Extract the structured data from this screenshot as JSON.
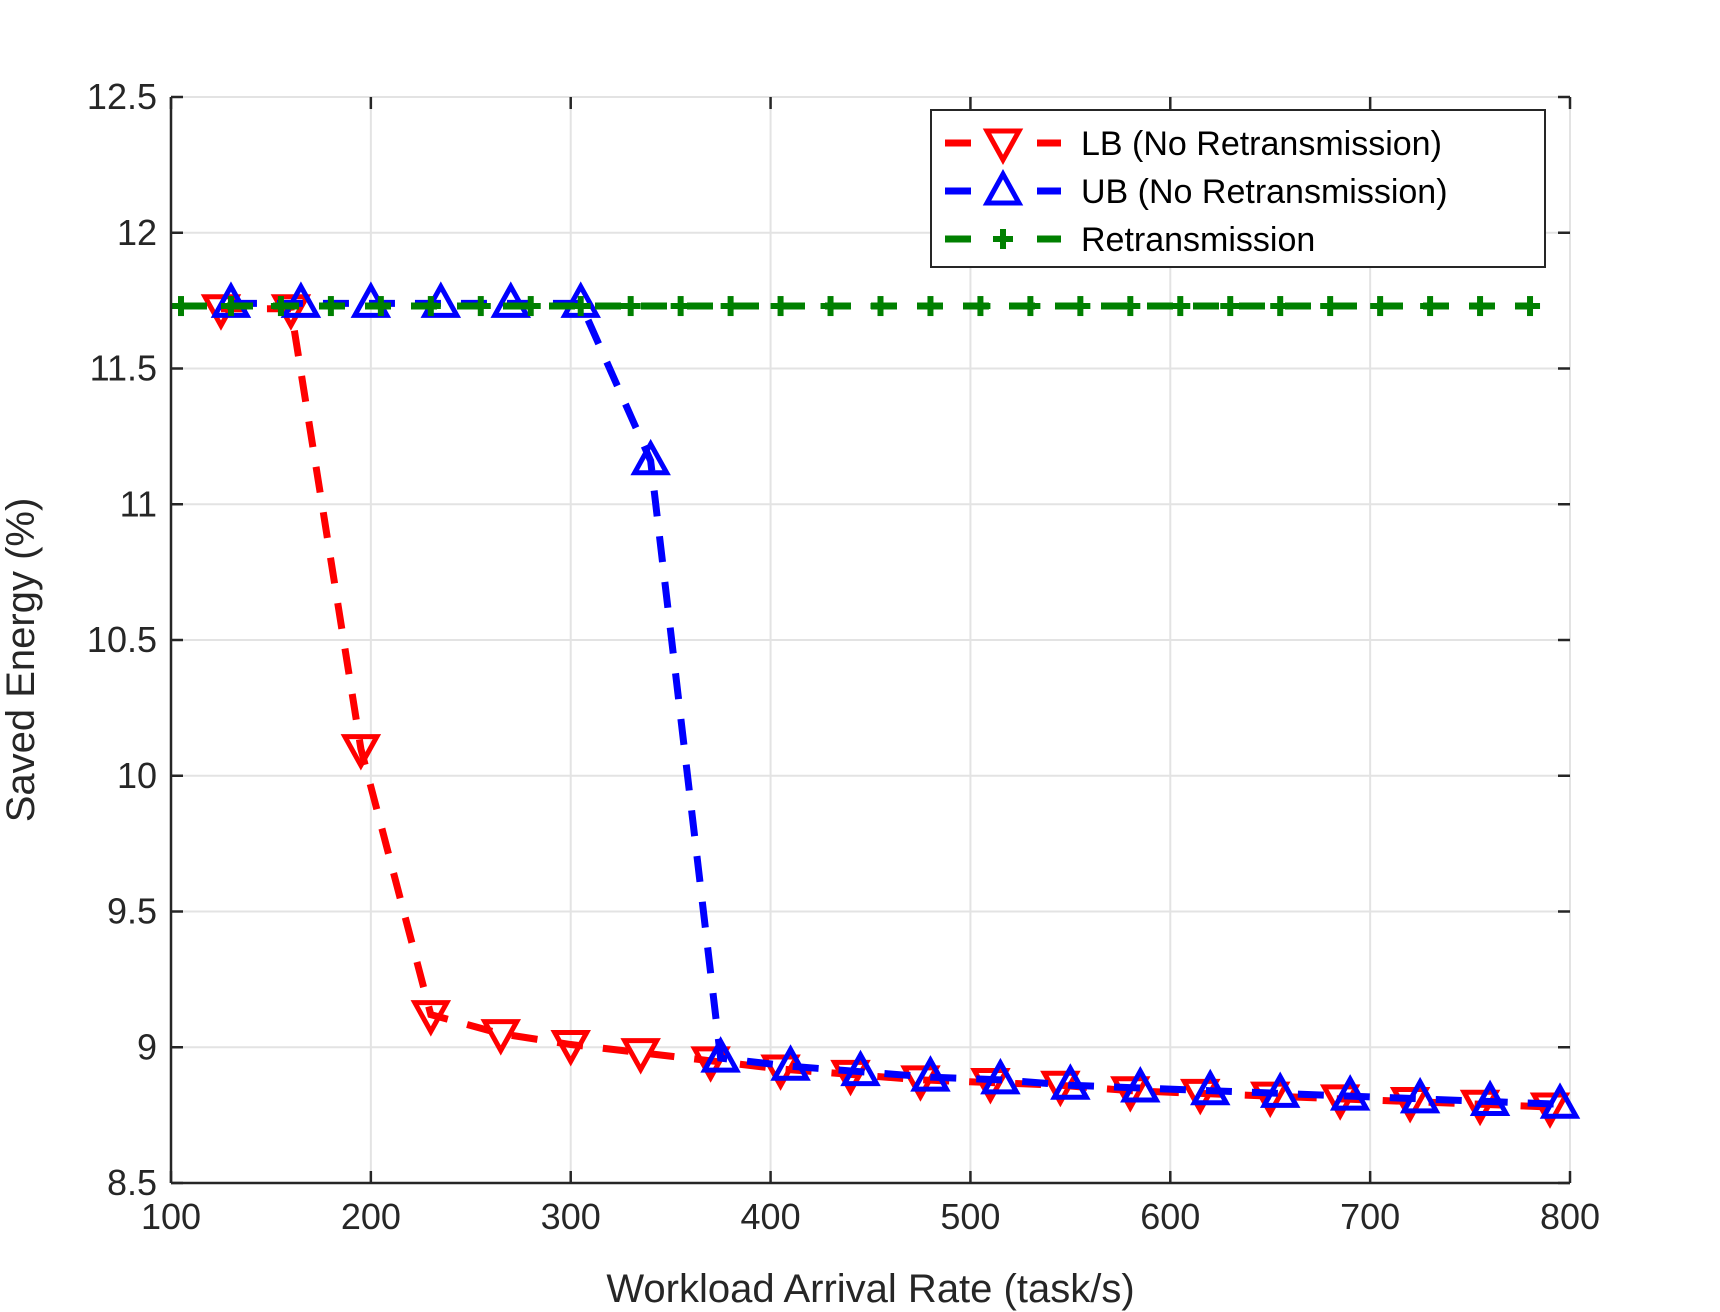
{
  "chart_data": {
    "type": "line",
    "xlabel": "Workload Arrival Rate (task/s)",
    "ylabel": "Saved Energy (%)",
    "xlim": [
      100,
      800
    ],
    "ylim": [
      8.5,
      12.5
    ],
    "xticks": [
      100,
      200,
      300,
      400,
      500,
      600,
      700,
      800
    ],
    "yticks": [
      8.5,
      9,
      9.5,
      10,
      10.5,
      11,
      11.5,
      12,
      12.5
    ],
    "xtick_labels": [
      "100",
      "200",
      "300",
      "400",
      "500",
      "600",
      "700",
      "800"
    ],
    "ytick_labels": [
      "8.5",
      "9",
      "9.5",
      "10",
      "10.5",
      "11",
      "11.5",
      "12",
      "12.5"
    ],
    "grid": true,
    "legend_position": "top-right",
    "series": [
      {
        "name": "LB (No Retransmission)",
        "color": "#ff0000",
        "marker": "triangle-down",
        "line_style": "dashed",
        "x": [
          125,
          160,
          195,
          230,
          265,
          300,
          335,
          370,
          405,
          440,
          475,
          510,
          545,
          580,
          615,
          650,
          685,
          720,
          755,
          790
        ],
        "y": [
          11.72,
          11.72,
          10.1,
          9.12,
          9.05,
          9.01,
          8.98,
          8.95,
          8.92,
          8.9,
          8.88,
          8.87,
          8.86,
          8.84,
          8.83,
          8.82,
          8.81,
          8.8,
          8.79,
          8.78
        ]
      },
      {
        "name": "UB (No Retransmission)",
        "color": "#0000ff",
        "marker": "triangle-up",
        "line_style": "dashed",
        "x": [
          130,
          165,
          200,
          235,
          270,
          305,
          340,
          375,
          410,
          445,
          480,
          515,
          550,
          585,
          620,
          655,
          690,
          725,
          760,
          795
        ],
        "y": [
          11.74,
          11.74,
          11.74,
          11.74,
          11.74,
          11.74,
          11.16,
          8.96,
          8.93,
          8.91,
          8.89,
          8.88,
          8.86,
          8.85,
          8.84,
          8.83,
          8.82,
          8.81,
          8.8,
          8.79
        ]
      },
      {
        "name": "Retransmission",
        "color": "#008000",
        "marker": "plus",
        "line_style": "dashed",
        "x": [
          105,
          130,
          155,
          180,
          205,
          230,
          255,
          280,
          305,
          330,
          355,
          380,
          405,
          430,
          455,
          480,
          505,
          530,
          555,
          580,
          605,
          630,
          655,
          680,
          705,
          730,
          755,
          780
        ],
        "y": [
          11.73,
          11.73,
          11.73,
          11.73,
          11.73,
          11.73,
          11.73,
          11.73,
          11.73,
          11.73,
          11.73,
          11.73,
          11.73,
          11.73,
          11.73,
          11.73,
          11.73,
          11.73,
          11.73,
          11.73,
          11.73,
          11.73,
          11.73,
          11.73,
          11.73,
          11.73,
          11.73,
          11.73
        ]
      }
    ]
  }
}
